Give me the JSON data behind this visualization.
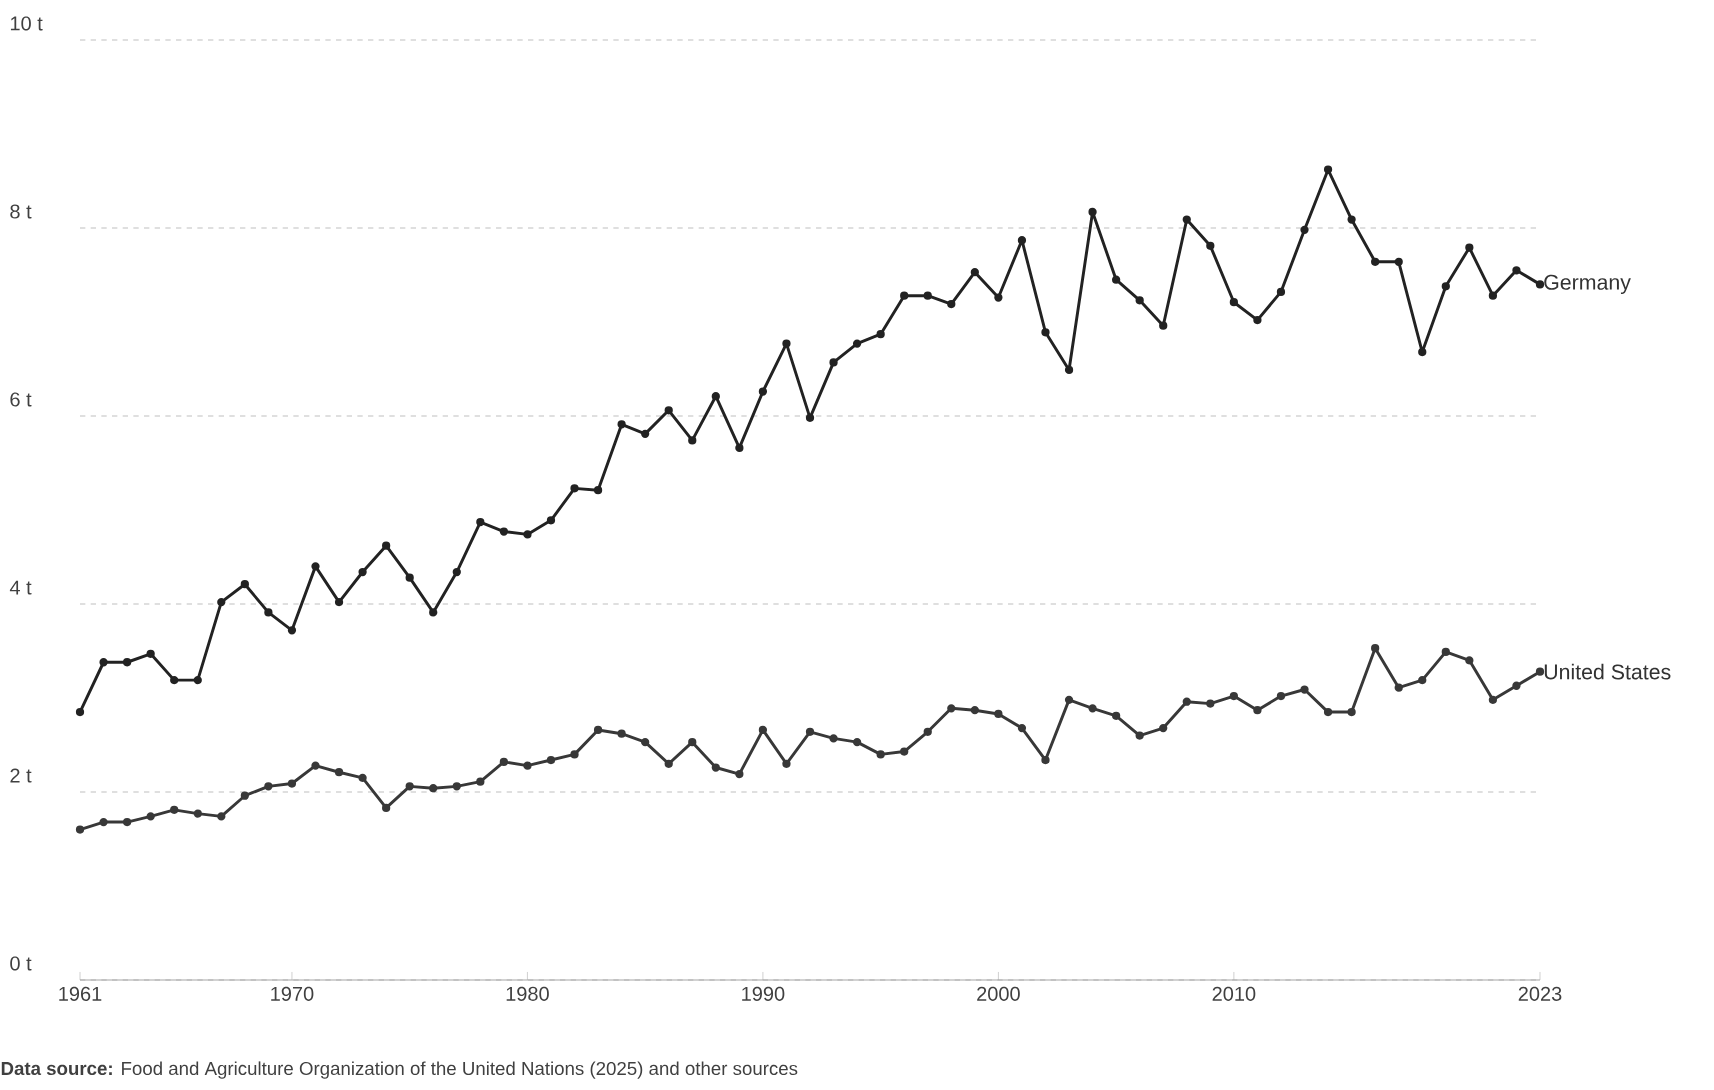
{
  "chart_data": {
    "type": "line",
    "x": [
      1961,
      1962,
      1963,
      1964,
      1965,
      1966,
      1967,
      1968,
      1969,
      1970,
      1971,
      1972,
      1973,
      1974,
      1975,
      1976,
      1977,
      1978,
      1979,
      1980,
      1981,
      1982,
      1983,
      1984,
      1985,
      1986,
      1987,
      1988,
      1989,
      1990,
      1991,
      1992,
      1993,
      1994,
      1995,
      1996,
      1997,
      1998,
      1999,
      2000,
      2001,
      2002,
      2003,
      2004,
      2005,
      2006,
      2007,
      2008,
      2009,
      2010,
      2011,
      2012,
      2013,
      2014,
      2015,
      2016,
      2017,
      2018,
      2019,
      2020,
      2021,
      2022,
      2023
    ],
    "series": [
      {
        "name": "Germany",
        "color": "#222222",
        "values": [
          2.85,
          3.38,
          3.38,
          3.47,
          3.19,
          3.19,
          4.02,
          4.21,
          3.91,
          3.72,
          4.4,
          4.02,
          4.34,
          4.62,
          4.28,
          3.91,
          4.34,
          4.87,
          4.77,
          4.74,
          4.89,
          5.23,
          5.21,
          5.91,
          5.81,
          6.06,
          5.74,
          6.21,
          5.66,
          6.26,
          6.77,
          5.98,
          6.57,
          6.77,
          6.87,
          7.28,
          7.28,
          7.19,
          7.53,
          7.26,
          7.87,
          6.89,
          6.49,
          8.17,
          7.45,
          7.23,
          6.96,
          8.09,
          7.81,
          7.21,
          7.02,
          7.32,
          7.98,
          8.62,
          8.09,
          7.64,
          7.64,
          6.68,
          7.38,
          7.79,
          7.28,
          7.55,
          7.4
        ]
      },
      {
        "name": "United States",
        "color": "#383838",
        "values": [
          1.6,
          1.68,
          1.68,
          1.74,
          1.81,
          1.77,
          1.74,
          1.96,
          2.06,
          2.09,
          2.28,
          2.21,
          2.15,
          1.83,
          2.06,
          2.04,
          2.06,
          2.11,
          2.32,
          2.28,
          2.34,
          2.4,
          2.66,
          2.62,
          2.53,
          2.3,
          2.53,
          2.26,
          2.19,
          2.66,
          2.3,
          2.64,
          2.57,
          2.53,
          2.4,
          2.43,
          2.64,
          2.89,
          2.87,
          2.83,
          2.68,
          2.34,
          2.98,
          2.89,
          2.81,
          2.6,
          2.68,
          2.96,
          2.94,
          3.02,
          2.87,
          3.02,
          3.09,
          2.85,
          2.85,
          3.53,
          3.11,
          3.19,
          3.49,
          3.4,
          2.98,
          3.13,
          3.28
        ]
      }
    ],
    "xlim": [
      1961,
      2023
    ],
    "xticks": [
      1961,
      1970,
      1980,
      1990,
      2000,
      2010,
      2023
    ],
    "ylim": [
      0,
      10
    ],
    "yticks": [
      {
        "value": 0,
        "label": "0 t"
      },
      {
        "value": 2,
        "label": "2 t"
      },
      {
        "value": 4,
        "label": "4 t"
      },
      {
        "value": 6,
        "label": "6 t"
      },
      {
        "value": 8,
        "label": "8 t"
      },
      {
        "value": 10,
        "label": "10 t"
      }
    ],
    "grid": "y",
    "marker": "circle",
    "line_style": "solid",
    "annotations": [
      "**Data source:** Food and Agriculture Organization of the United Nations (2025) and other sources"
    ]
  }
}
